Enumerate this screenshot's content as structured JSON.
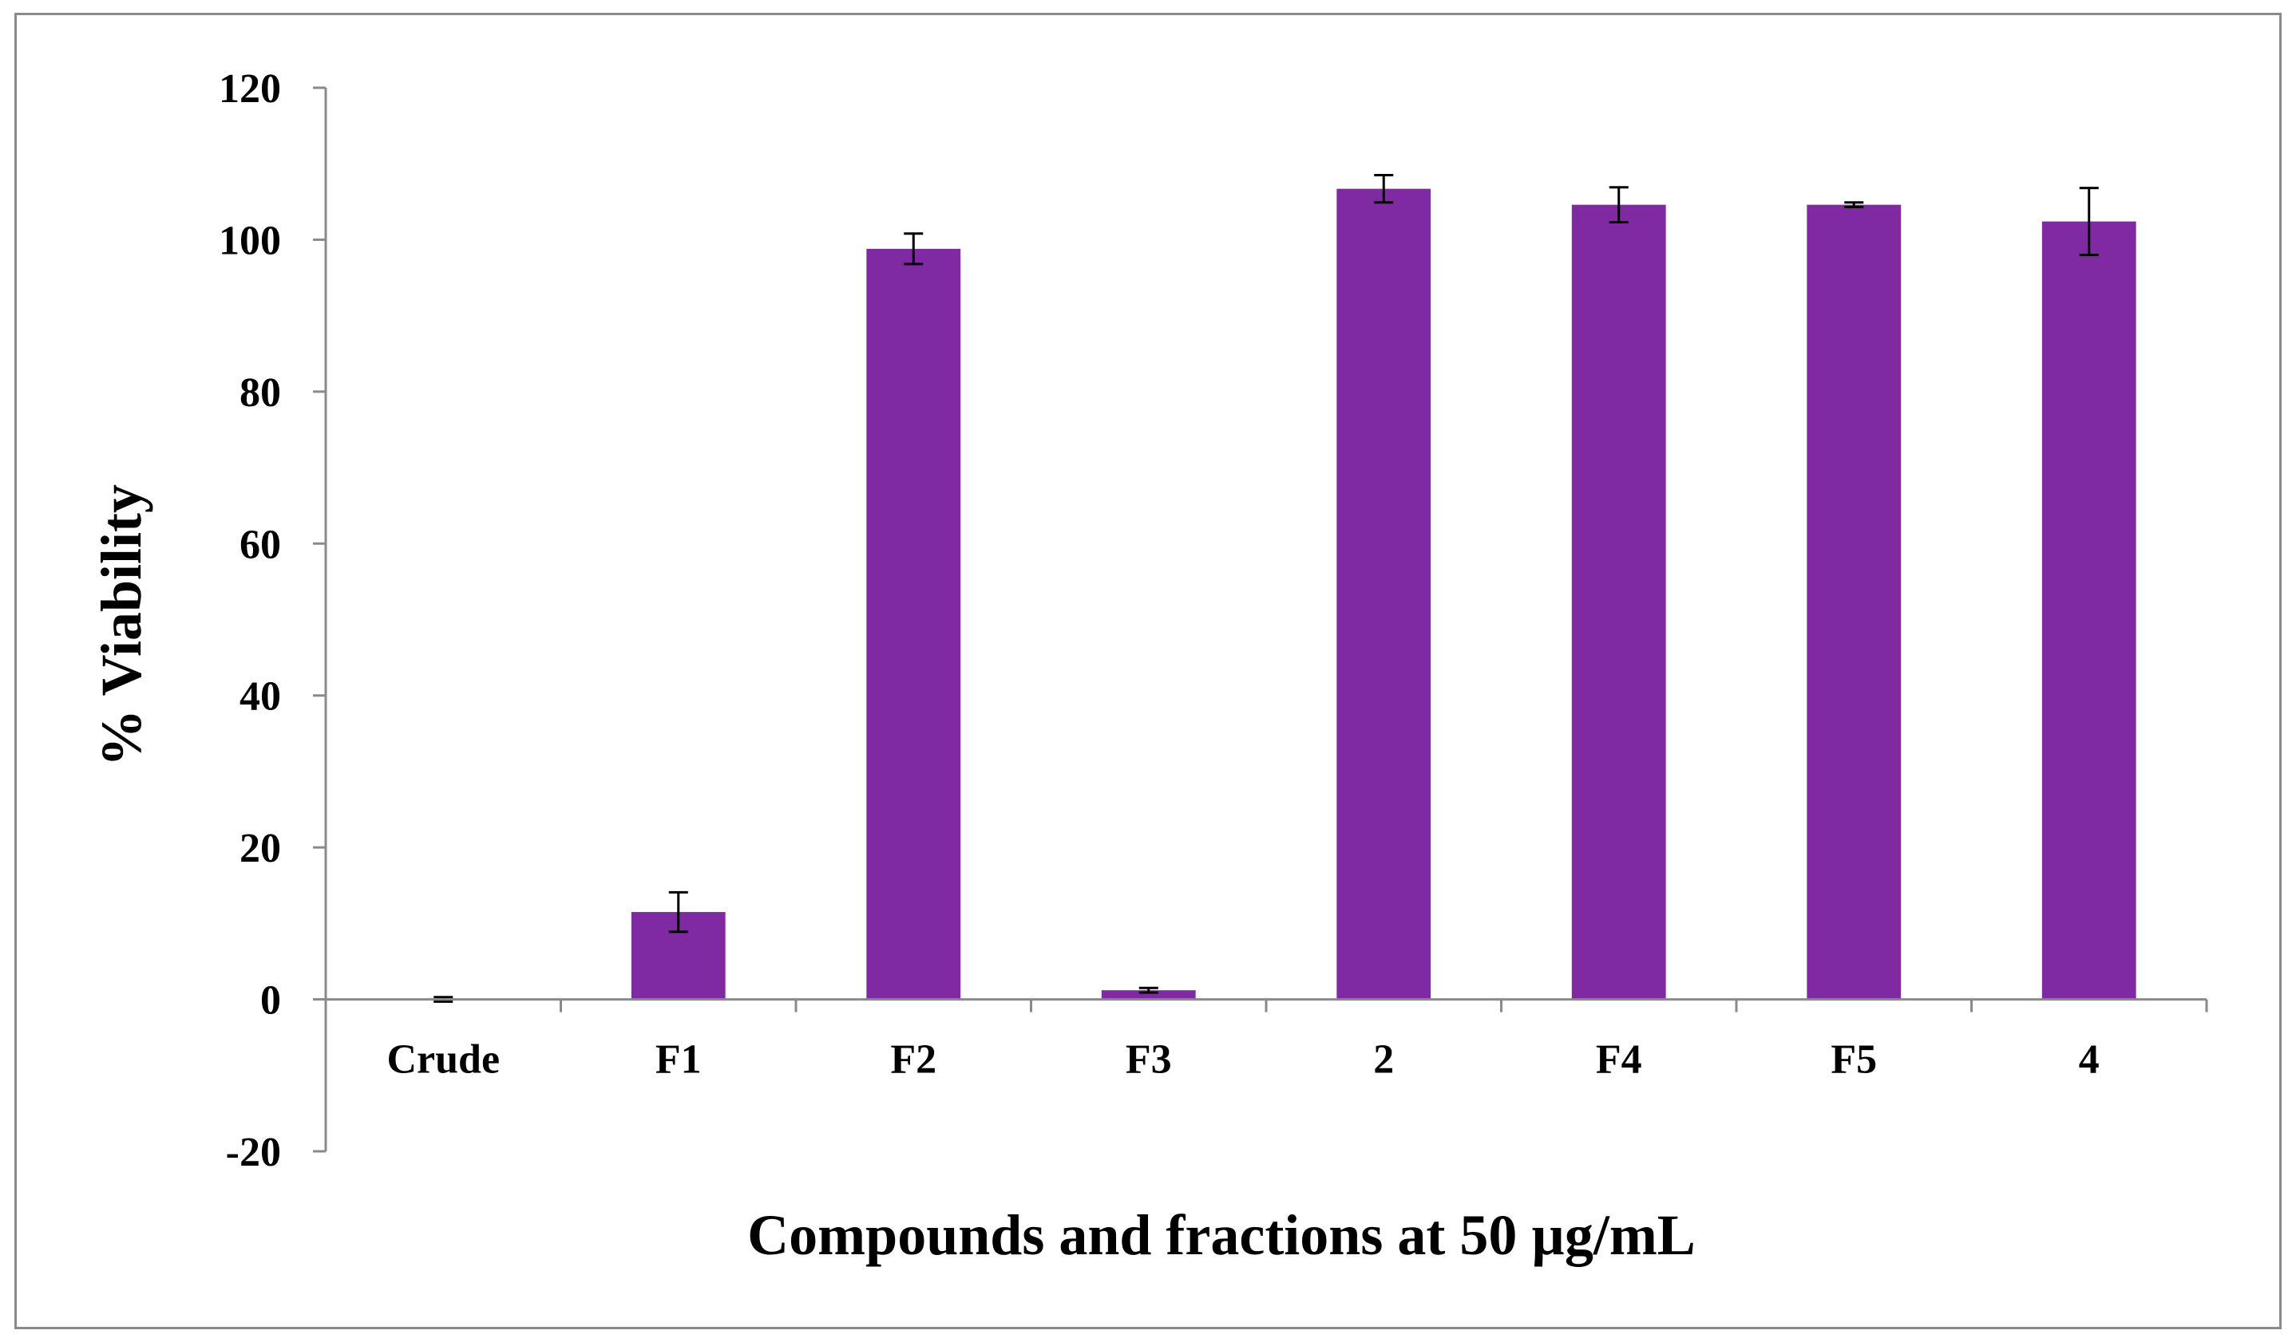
{
  "chart_data": {
    "type": "bar",
    "title": "",
    "xlabel": "Compounds and fractions at 50 µg/mL",
    "ylabel": "% Viability",
    "categories": [
      "Crude",
      "F1",
      "F2",
      "F3",
      "2",
      "F4",
      "F5",
      "4"
    ],
    "values": [
      0,
      11.5,
      98.8,
      1.2,
      106.7,
      104.6,
      104.6,
      102.4
    ],
    "error": [
      0.3,
      2.6,
      2.0,
      0.3,
      1.8,
      2.3,
      0.3,
      4.4
    ],
    "ylim": [
      -20,
      120
    ],
    "yticks": [
      -20,
      0,
      20,
      40,
      60,
      80,
      100,
      120
    ],
    "ytick_labels": [
      "-20",
      "0",
      "20",
      "40",
      "60",
      "80",
      "100",
      "120"
    ],
    "grid": false,
    "legend": "none",
    "colors": {
      "bar": "#7f2aa3",
      "axis": "#8a8a8a",
      "error_bar": "#000000"
    }
  }
}
